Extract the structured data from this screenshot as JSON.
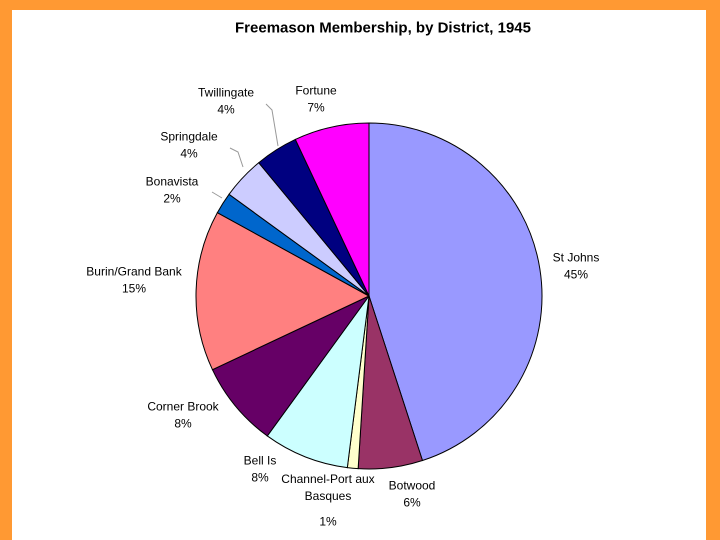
{
  "chart_data": {
    "type": "pie",
    "title": "Freemason Membership, by District, 1945",
    "categories": [
      "St Johns",
      "Botwood",
      "Channel-Port aux Basques",
      "Bell Is",
      "Corner Brook",
      "Burin/Grand Bank",
      "Bonavista",
      "Springdale",
      "Twillingate",
      "Fortune"
    ],
    "values": [
      45,
      6,
      1,
      8,
      8,
      15,
      2,
      4,
      4,
      7
    ],
    "value_labels": [
      "45%",
      "6%",
      "1%",
      "8%",
      "8%",
      "15%",
      "2%",
      "4%",
      "4%",
      "7%"
    ],
    "colors": [
      "#9999ff",
      "#993366",
      "#ffffcc",
      "#ccffff",
      "#660066",
      "#ff8080",
      "#0066cc",
      "#ccccff",
      "#000080",
      "#ff00ff"
    ]
  }
}
